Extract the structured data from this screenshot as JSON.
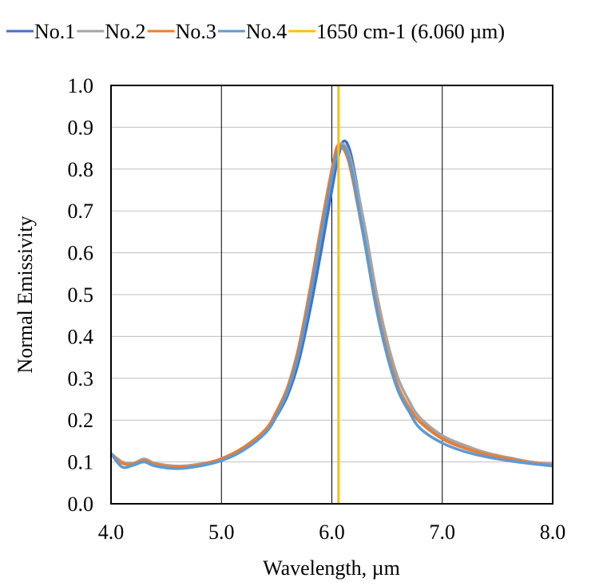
{
  "chart_data": {
    "type": "line",
    "title": "",
    "xlabel": "Wavelength, µm",
    "ylabel": "Normal Emissivity",
    "xlim": [
      4.0,
      8.0
    ],
    "ylim": [
      0.0,
      1.0
    ],
    "x_ticks": [
      "4.0",
      "5.0",
      "6.0",
      "7.0",
      "8.0"
    ],
    "y_ticks": [
      "0.0",
      "0.1",
      "0.2",
      "0.3",
      "0.4",
      "0.5",
      "0.6",
      "0.7",
      "0.8",
      "0.9",
      "1.0"
    ],
    "grid": true,
    "legend_position": "top",
    "series": [
      {
        "name": "No.1",
        "color": "#4472C4",
        "x": [
          4.0,
          4.1,
          4.2,
          4.3,
          4.4,
          4.6,
          4.8,
          5.0,
          5.2,
          5.4,
          5.5,
          5.6,
          5.7,
          5.8,
          5.9,
          6.0,
          6.05,
          6.1,
          6.15,
          6.2,
          6.3,
          6.4,
          6.5,
          6.6,
          6.7,
          6.8,
          7.0,
          7.2,
          7.4,
          7.6,
          7.8,
          8.0
        ],
        "y": [
          0.12,
          0.1,
          0.095,
          0.105,
          0.095,
          0.088,
          0.093,
          0.105,
          0.13,
          0.17,
          0.21,
          0.26,
          0.34,
          0.46,
          0.6,
          0.75,
          0.82,
          0.865,
          0.855,
          0.8,
          0.65,
          0.49,
          0.37,
          0.28,
          0.23,
          0.195,
          0.16,
          0.138,
          0.12,
          0.11,
          0.1,
          0.095
        ]
      },
      {
        "name": "No.2",
        "color": "#A5A5A5",
        "x": [
          4.0,
          4.1,
          4.2,
          4.3,
          4.4,
          4.6,
          4.8,
          5.0,
          5.2,
          5.4,
          5.5,
          5.6,
          5.7,
          5.8,
          5.9,
          6.0,
          6.05,
          6.1,
          6.15,
          6.2,
          6.3,
          6.4,
          6.5,
          6.6,
          6.7,
          6.8,
          7.0,
          7.2,
          7.4,
          7.6,
          7.8,
          8.0
        ],
        "y": [
          0.12,
          0.1,
          0.097,
          0.107,
          0.097,
          0.09,
          0.095,
          0.107,
          0.132,
          0.173,
          0.215,
          0.27,
          0.36,
          0.49,
          0.64,
          0.79,
          0.85,
          0.86,
          0.84,
          0.79,
          0.66,
          0.51,
          0.39,
          0.3,
          0.245,
          0.205,
          0.163,
          0.14,
          0.122,
          0.11,
          0.1,
          0.095
        ]
      },
      {
        "name": "No.3",
        "color": "#ED7D31",
        "x": [
          4.0,
          4.1,
          4.2,
          4.3,
          4.4,
          4.6,
          4.8,
          5.0,
          5.2,
          5.4,
          5.5,
          5.6,
          5.7,
          5.8,
          5.9,
          6.0,
          6.05,
          6.1,
          6.15,
          6.2,
          6.3,
          6.4,
          6.5,
          6.6,
          6.7,
          6.8,
          7.0,
          7.2,
          7.4,
          7.6,
          7.8,
          8.0
        ],
        "y": [
          0.12,
          0.097,
          0.095,
          0.104,
          0.094,
          0.088,
          0.093,
          0.108,
          0.135,
          0.178,
          0.222,
          0.28,
          0.375,
          0.51,
          0.66,
          0.8,
          0.855,
          0.85,
          0.82,
          0.76,
          0.62,
          0.48,
          0.365,
          0.28,
          0.23,
          0.195,
          0.155,
          0.133,
          0.118,
          0.108,
          0.098,
          0.092
        ]
      },
      {
        "name": "No.4",
        "color": "#5B9BD5",
        "x": [
          4.0,
          4.1,
          4.2,
          4.3,
          4.4,
          4.6,
          4.8,
          5.0,
          5.2,
          5.4,
          5.5,
          5.6,
          5.7,
          5.8,
          5.9,
          6.0,
          6.05,
          6.1,
          6.15,
          6.2,
          6.3,
          6.4,
          6.5,
          6.6,
          6.7,
          6.8,
          7.0,
          7.2,
          7.4,
          7.6,
          7.8,
          8.0
        ],
        "y": [
          0.12,
          0.088,
          0.092,
          0.1,
          0.09,
          0.084,
          0.09,
          0.103,
          0.128,
          0.17,
          0.212,
          0.27,
          0.36,
          0.49,
          0.64,
          0.78,
          0.84,
          0.855,
          0.83,
          0.77,
          0.62,
          0.47,
          0.355,
          0.27,
          0.22,
          0.18,
          0.145,
          0.125,
          0.112,
          0.103,
          0.096,
          0.09
        ]
      },
      {
        "name": "1650 cm-1 (6.060 µm)",
        "color": "#FFC000",
        "x": [
          6.06,
          6.06
        ],
        "y": [
          0.0,
          1.0
        ]
      }
    ]
  }
}
